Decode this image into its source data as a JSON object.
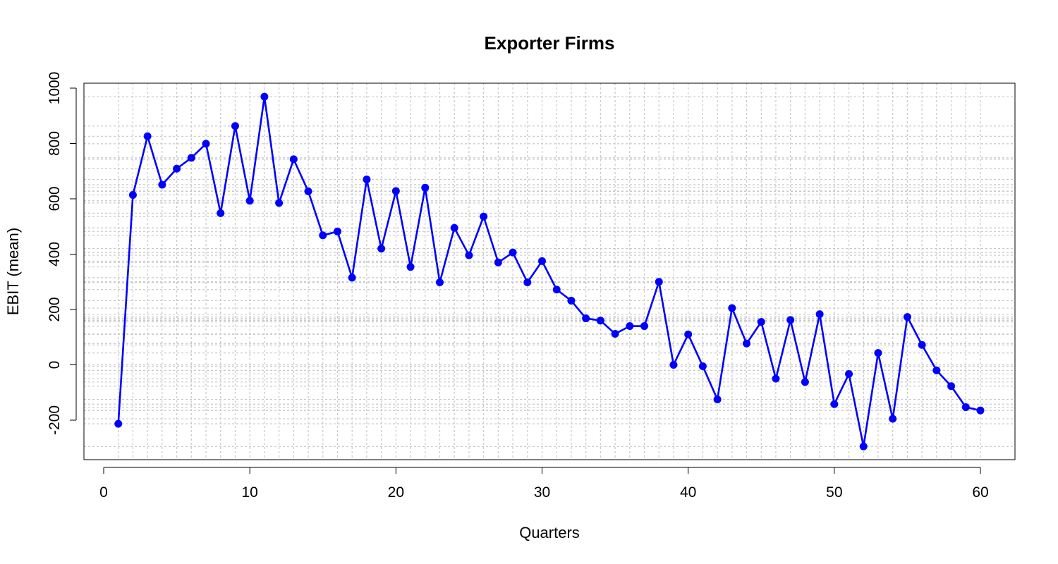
{
  "chart_data": {
    "type": "line",
    "title": "Exporter Firms",
    "xlabel": "Quarters",
    "ylabel": "EBIT (mean)",
    "xlim": [
      0,
      60
    ],
    "ylim": [
      -300,
      1000
    ],
    "x_ticks": [
      0,
      10,
      20,
      30,
      40,
      50,
      60
    ],
    "y_ticks": [
      -200,
      0,
      200,
      400,
      600,
      800,
      1000
    ],
    "grid": true,
    "legend": "none",
    "line_color": "#0000ff",
    "marker": "filled-circle",
    "series": [
      {
        "x": [
          1,
          2,
          3,
          4,
          5,
          6,
          7,
          8,
          9,
          10,
          11,
          12,
          13,
          14,
          15,
          16,
          17,
          18,
          19,
          20,
          21,
          22,
          23,
          24,
          25,
          26,
          27,
          28,
          29,
          30,
          31,
          32,
          33,
          34,
          35,
          36,
          37,
          38,
          39,
          40,
          41,
          42,
          43,
          44,
          45,
          46,
          47,
          48,
          49,
          50,
          51,
          52,
          53,
          54,
          55,
          56,
          57,
          58,
          59,
          60
        ],
        "values": [
          -213,
          614,
          826,
          651,
          709,
          748,
          799,
          548,
          863,
          593,
          969,
          585,
          743,
          627,
          468,
          482,
          315,
          670,
          420,
          628,
          354,
          640,
          298,
          495,
          396,
          536,
          370,
          406,
          298,
          375,
          272,
          232,
          168,
          160,
          112,
          140,
          140,
          300,
          0,
          110,
          -5,
          -125,
          205,
          77,
          155,
          -50,
          162,
          -62,
          183,
          -142,
          -33,
          -295,
          43,
          -195,
          173,
          72,
          -20,
          -77,
          -153,
          -165
        ]
      }
    ]
  }
}
